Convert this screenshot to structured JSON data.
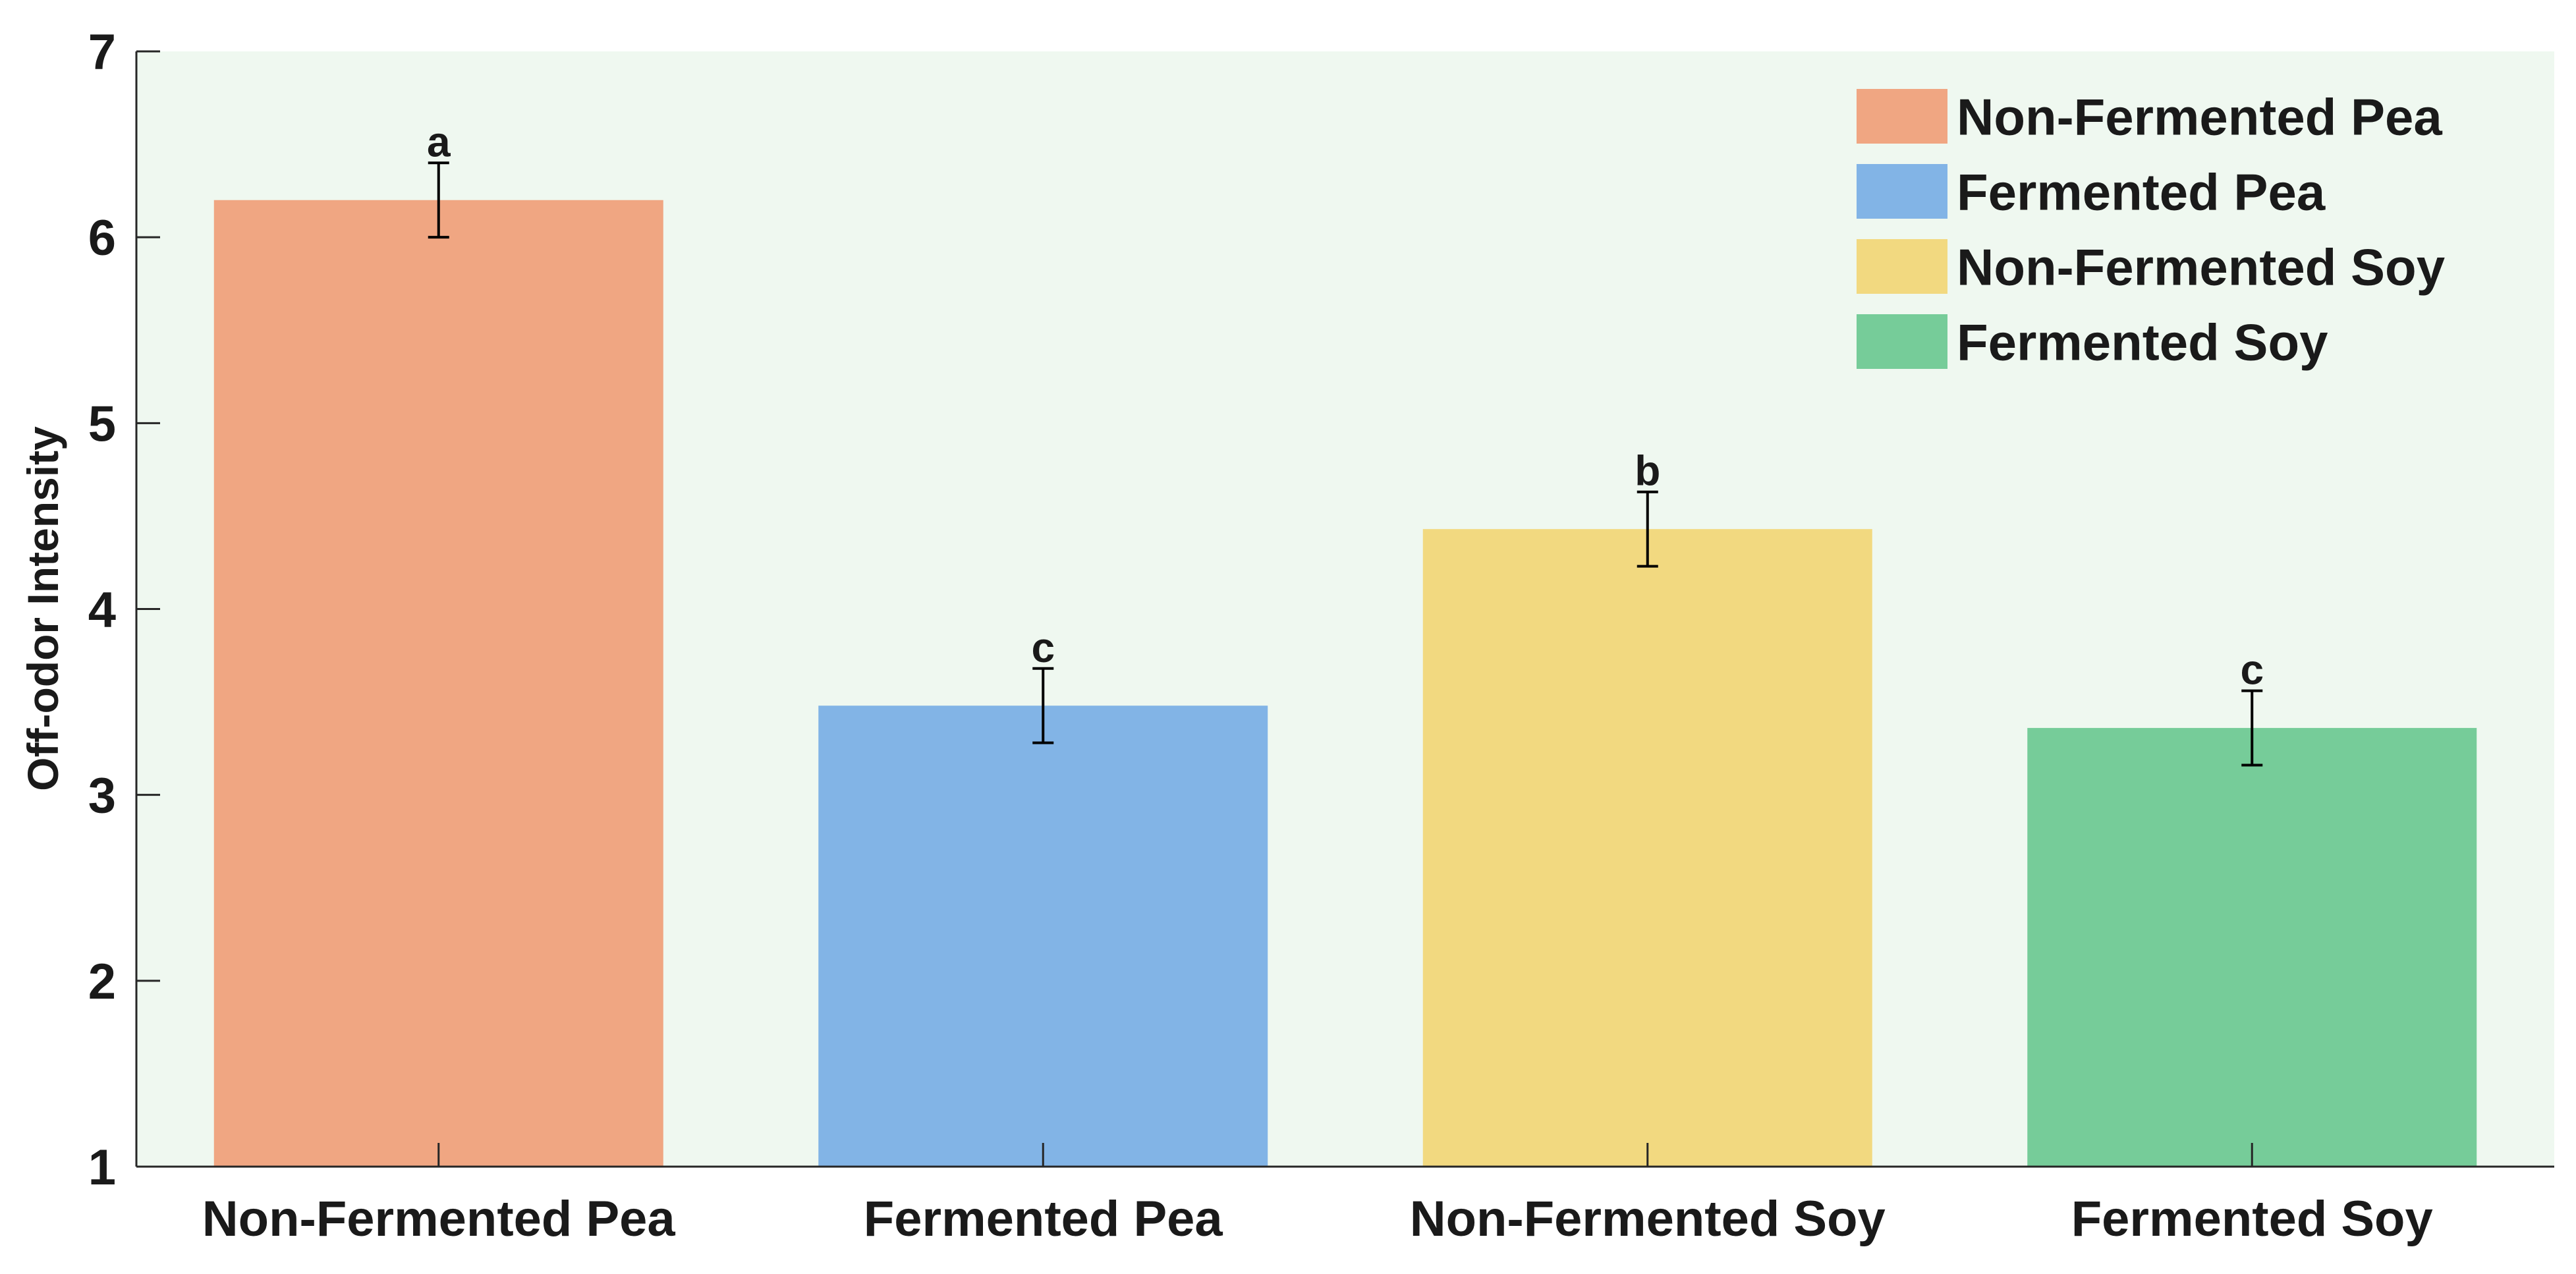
{
  "chart_data": {
    "type": "bar",
    "title": "",
    "xlabel": "",
    "ylabel": "Off-odor Intensity",
    "ylim": [
      1,
      7
    ],
    "yticks": [
      1,
      2,
      3,
      4,
      5,
      6,
      7
    ],
    "ytick_labels": [
      "1",
      "2",
      "3",
      "4",
      "5",
      "6",
      "7"
    ],
    "categories": [
      "Non-Fermented Pea",
      "Fermented Pea",
      "Non-Fermented Soy",
      "Fermented Soy"
    ],
    "values": [
      6.2,
      3.48,
      4.43,
      3.36
    ],
    "errors": [
      0.2,
      0.2,
      0.2,
      0.2
    ],
    "significance_labels": [
      "a",
      "c",
      "b",
      "c"
    ],
    "colors": [
      "#f0a682",
      "#82b4e6",
      "#f2d980",
      "#76cc99"
    ],
    "legend": {
      "position": "top-right",
      "entries": [
        "Non-Fermented Pea",
        "Fermented Pea",
        "Non-Fermented Soy",
        "Fermented Soy"
      ]
    },
    "plot_background": "#eff8f0",
    "grid": false
  }
}
